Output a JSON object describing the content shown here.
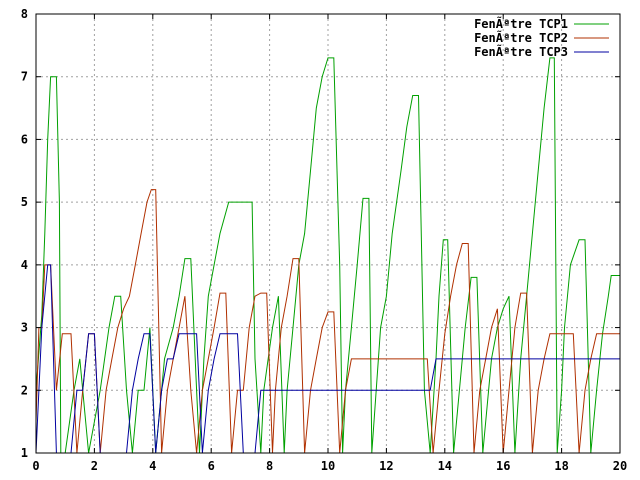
{
  "chart_data": {
    "type": "line",
    "title": "",
    "xlabel": "",
    "ylabel": "",
    "xlim": [
      0,
      20
    ],
    "ylim": [
      1,
      8
    ],
    "xticks": [
      0,
      2,
      4,
      6,
      8,
      10,
      12,
      14,
      16,
      18,
      20
    ],
    "yticks": [
      1,
      2,
      3,
      4,
      5,
      6,
      7,
      8
    ],
    "grid": true,
    "legend_position": "top-right",
    "series": [
      {
        "name": "FenÃªtre TCP1",
        "color": "#00a000",
        "x": [
          0.0,
          0.2,
          0.3,
          0.4,
          0.5,
          0.6,
          0.7,
          0.8,
          0.85,
          1.0,
          1.3,
          1.5,
          1.8,
          2.2,
          2.5,
          2.7,
          2.9,
          3.1,
          3.3,
          3.5,
          3.7,
          3.9,
          4.1,
          4.4,
          4.7,
          4.9,
          5.1,
          5.3,
          5.5,
          5.6,
          5.75,
          5.9,
          6.1,
          6.3,
          6.6,
          6.9,
          7.1,
          7.4,
          7.5,
          7.7,
          7.8,
          8.1,
          8.3,
          8.5,
          8.6,
          8.8,
          9.0,
          9.2,
          9.4,
          9.6,
          9.8,
          10.0,
          10.2,
          10.4,
          10.5,
          10.6,
          10.8,
          11.0,
          11.2,
          11.4,
          11.5,
          11.65,
          11.8,
          12.0,
          12.2,
          12.5,
          12.7,
          12.9,
          13.1,
          13.3,
          13.5,
          13.7,
          13.8,
          13.95,
          14.1,
          14.3,
          14.5,
          14.7,
          14.9,
          15.1,
          15.3,
          15.5,
          15.6,
          15.8,
          16.0,
          16.2,
          16.4,
          16.6,
          16.8,
          17.0,
          17.2,
          17.4,
          17.6,
          17.75,
          17.85,
          18.0,
          18.1,
          18.3,
          18.6,
          18.8,
          19.0,
          19.2,
          19.4,
          19.6,
          19.7,
          19.9,
          20.0
        ],
        "y": [
          2.0,
          3.2,
          4.5,
          6.0,
          7.0,
          7.0,
          7.0,
          5.0,
          1.0,
          1.0,
          2.0,
          2.5,
          1.0,
          2.0,
          3.0,
          3.5,
          3.5,
          2.0,
          1.0,
          2.0,
          2.0,
          3.0,
          1.0,
          2.5,
          3.0,
          3.5,
          4.1,
          4.1,
          2.0,
          1.0,
          2.5,
          3.5,
          4.0,
          4.5,
          5.0,
          5.0,
          5.0,
          5.0,
          2.5,
          1.0,
          2.0,
          3.0,
          3.5,
          1.0,
          2.0,
          3.0,
          4.0,
          4.5,
          5.5,
          6.5,
          7.0,
          7.3,
          7.3,
          4.0,
          1.0,
          2.0,
          3.0,
          4.0,
          5.06,
          5.06,
          1.0,
          2.0,
          3.0,
          3.5,
          4.5,
          5.5,
          6.2,
          6.7,
          6.7,
          2.0,
          1.0,
          2.5,
          3.5,
          4.4,
          4.4,
          1.0,
          2.0,
          3.0,
          3.8,
          3.8,
          1.0,
          2.0,
          2.5,
          3.0,
          3.3,
          3.5,
          1.0,
          2.5,
          3.5,
          4.5,
          5.5,
          6.5,
          7.3,
          7.3,
          1.0,
          2.0,
          3.0,
          4.0,
          4.4,
          4.4,
          1.0,
          2.0,
          2.9,
          3.5,
          3.83,
          3.83,
          3.83
        ]
      },
      {
        "name": "FenÃªtre TCP2",
        "color": "#b03000",
        "x": [
          0.0,
          0.1,
          0.2,
          0.3,
          0.5,
          0.7,
          0.9,
          1.2,
          1.4,
          1.6,
          1.8,
          2.0,
          2.2,
          2.4,
          2.6,
          2.8,
          3.0,
          3.2,
          3.4,
          3.6,
          3.8,
          3.95,
          4.1,
          4.3,
          4.5,
          4.7,
          4.9,
          5.1,
          5.3,
          5.5,
          5.7,
          5.9,
          6.1,
          6.3,
          6.5,
          6.7,
          6.9,
          7.1,
          7.3,
          7.5,
          7.7,
          7.9,
          8.1,
          8.2,
          8.4,
          8.6,
          8.8,
          9.0,
          9.2,
          9.4,
          9.6,
          9.8,
          10.0,
          10.2,
          10.4,
          10.6,
          10.8,
          11.0,
          11.2,
          11.4,
          11.6,
          11.8,
          12.0,
          12.2,
          12.4,
          12.6,
          12.8,
          13.0,
          13.2,
          13.4,
          13.6,
          13.8,
          14.0,
          14.2,
          14.4,
          14.6,
          14.8,
          15.0,
          15.2,
          15.4,
          15.6,
          15.8,
          16.0,
          16.2,
          16.4,
          16.6,
          16.8,
          17.0,
          17.2,
          17.4,
          17.6,
          17.8,
          18.0,
          18.2,
          18.4,
          18.6,
          18.8,
          19.0,
          19.2,
          19.4,
          19.6,
          19.8,
          20.0
        ],
        "y": [
          1.5,
          3.0,
          3.0,
          4.0,
          4.0,
          2.0,
          2.9,
          2.9,
          1.0,
          2.0,
          2.9,
          2.9,
          1.0,
          2.0,
          2.5,
          3.0,
          3.3,
          3.5,
          4.0,
          4.5,
          5.0,
          5.2,
          5.2,
          1.0,
          2.0,
          2.5,
          3.0,
          3.5,
          2.0,
          1.0,
          2.0,
          2.5,
          3.0,
          3.55,
          3.55,
          1.0,
          2.0,
          2.0,
          3.0,
          3.5,
          3.55,
          3.55,
          1.0,
          2.0,
          3.0,
          3.5,
          4.1,
          4.1,
          1.0,
          2.0,
          2.5,
          3.0,
          3.25,
          3.25,
          1.0,
          2.0,
          2.5,
          2.5,
          2.5,
          2.5,
          2.5,
          2.5,
          2.5,
          2.5,
          2.5,
          2.5,
          2.5,
          2.5,
          2.5,
          2.5,
          1.0,
          2.0,
          2.9,
          3.5,
          4.0,
          4.34,
          4.34,
          1.0,
          2.0,
          2.5,
          3.0,
          3.3,
          1.0,
          2.0,
          3.0,
          3.55,
          3.55,
          1.0,
          2.0,
          2.5,
          2.9,
          2.9,
          2.9,
          2.9,
          2.9,
          1.0,
          2.0,
          2.5,
          2.9,
          2.9,
          2.9,
          2.9,
          2.9
        ]
      },
      {
        "name": "FenÃªtre TCP3",
        "color": "#0000a0",
        "x": [
          0.0,
          0.1,
          0.2,
          0.4,
          0.5,
          0.6,
          0.7,
          0.8,
          1.2,
          1.4,
          1.6,
          1.8,
          2.0,
          2.2,
          2.4,
          2.6,
          2.9,
          3.1,
          3.3,
          3.5,
          3.7,
          3.9,
          4.1,
          4.3,
          4.5,
          4.7,
          4.9,
          5.1,
          5.3,
          5.5,
          5.7,
          5.9,
          6.1,
          6.3,
          6.5,
          6.7,
          6.9,
          7.1,
          7.3,
          7.5,
          7.7,
          7.9,
          8.1,
          8.3,
          8.5,
          8.7,
          8.9,
          9.1,
          9.3,
          9.5,
          9.7,
          9.9,
          10.1,
          10.3,
          10.5,
          10.7,
          10.9,
          11.1,
          11.3,
          11.5,
          11.7,
          11.9,
          12.1,
          12.3,
          12.5,
          12.7,
          12.9,
          13.1,
          13.3,
          13.5,
          13.7,
          13.9,
          14.1,
          14.3,
          14.5,
          14.7,
          14.9,
          15.1,
          15.3,
          15.5,
          15.7,
          15.9,
          16.1,
          16.3,
          16.5,
          16.7,
          16.9,
          17.1,
          17.3,
          17.5,
          17.7,
          17.9,
          18.1,
          18.3,
          18.5,
          18.7,
          18.9,
          19.1,
          19.3,
          19.5,
          19.7,
          19.9,
          20.0
        ],
        "y": [
          1.0,
          2.0,
          3.0,
          4.0,
          4.0,
          2.5,
          1.0,
          1.0,
          1.0,
          2.0,
          2.0,
          2.9,
          2.9,
          1.0,
          1.0,
          1.0,
          1.0,
          1.0,
          2.0,
          2.5,
          2.9,
          2.9,
          1.0,
          2.0,
          2.5,
          2.5,
          2.9,
          2.9,
          2.9,
          2.9,
          1.0,
          2.0,
          2.5,
          2.9,
          2.9,
          2.9,
          2.9,
          1.0,
          1.0,
          1.0,
          2.0,
          2.0,
          2.0,
          2.0,
          2.0,
          2.0,
          2.0,
          2.0,
          2.0,
          2.0,
          2.0,
          2.0,
          2.0,
          2.0,
          2.0,
          2.0,
          2.0,
          2.0,
          2.0,
          2.0,
          2.0,
          2.0,
          2.0,
          2.0,
          2.0,
          2.0,
          2.0,
          2.0,
          2.0,
          2.0,
          2.5,
          2.5,
          2.5,
          2.5,
          2.5,
          2.5,
          2.5,
          2.5,
          2.5,
          2.5,
          2.5,
          2.5,
          2.5,
          2.5,
          2.5,
          2.5,
          2.5,
          2.5,
          2.5,
          2.5,
          2.5,
          2.5,
          2.5,
          2.5,
          2.5,
          2.5,
          2.5,
          2.5,
          2.5,
          2.5,
          2.5,
          2.5,
          2.5
        ]
      }
    ]
  }
}
